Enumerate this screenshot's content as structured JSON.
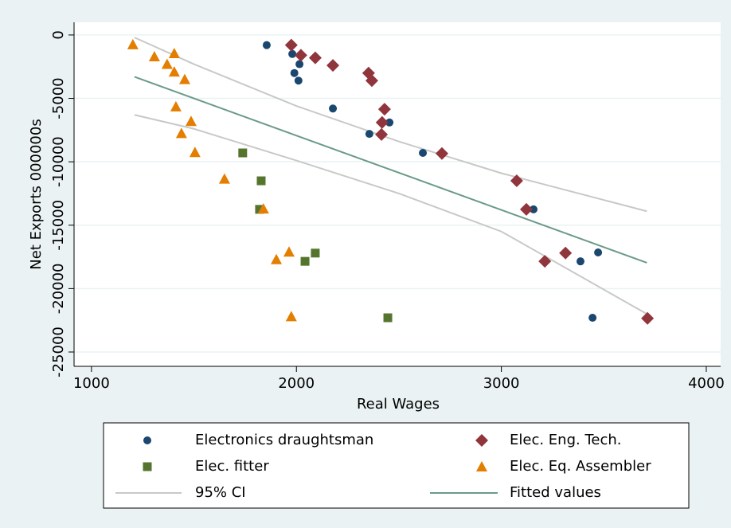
{
  "chart_data": {
    "type": "scatter",
    "x_label": "Real Wages",
    "y_label": "Net Exports 000000s",
    "xlim": [
      915,
      4070
    ],
    "ylim": [
      -26130,
      1000
    ],
    "xticks": [
      1000,
      2000,
      3000,
      4000
    ],
    "yticks": [
      0,
      -5000,
      -10000,
      -15000,
      -20000,
      -25000
    ],
    "grid": true,
    "legend": "bottom",
    "series": [
      {
        "name": "Electronics draughtsman",
        "color": "#1a476f",
        "marker": "circle",
        "x": [
          1855,
          1980,
          2015,
          1990,
          2010,
          2178,
          2356,
          2454,
          2617,
          3157,
          3386,
          3445,
          3472
        ],
        "values": [
          -800,
          -1500,
          -2300,
          -3000,
          -3600,
          -5800,
          -7800,
          -6900,
          -9300,
          -13750,
          -17850,
          -22300,
          -17150
        ]
      },
      {
        "name": "Elec. Eng. Tech.",
        "color": "#90353b",
        "marker": "diamond",
        "x": [
          1975,
          2022,
          2092,
          2178,
          2352,
          2368,
          2430,
          2418,
          2415,
          2710,
          3075,
          3122,
          3313,
          3212,
          3713
        ],
        "values": [
          -800,
          -1600,
          -1800,
          -2400,
          -3000,
          -3600,
          -5850,
          -6900,
          -7850,
          -9350,
          -11500,
          -13750,
          -17200,
          -17850,
          -22350
        ]
      },
      {
        "name": "Elec. fitter",
        "color": "#55752f",
        "marker": "square",
        "x": [
          1738,
          1828,
          1820,
          2092,
          2042,
          2446
        ],
        "values": [
          -9300,
          -11500,
          -13750,
          -17200,
          -17850,
          -22300
        ]
      },
      {
        "name": "Elec. Eq. Assembler",
        "color": "#e37e00",
        "marker": "triangle",
        "x": [
          1202,
          1307,
          1404,
          1369,
          1404,
          1455,
          1412,
          1486,
          1439,
          1505,
          1649,
          1839,
          1902,
          1964,
          1975
        ],
        "values": [
          -750,
          -1700,
          -1450,
          -2300,
          -2900,
          -3500,
          -5650,
          -6800,
          -7750,
          -9250,
          -11350,
          -13700,
          -17700,
          -17100,
          -22200
        ]
      },
      {
        "name": "95% CI",
        "color": "#c8c8c8",
        "marker": "band",
        "x": [
          1210,
          1500,
          2000,
          2500,
          3000,
          3710
        ],
        "upper": [
          -200,
          -2300,
          -5600,
          -8400,
          -10900,
          -13900
        ],
        "lower": [
          -6300,
          -7400,
          -9900,
          -12500,
          -15500,
          -22000
        ]
      },
      {
        "name": "Fitted values",
        "color": "#6a9a8a",
        "marker": "line",
        "x": [
          1210,
          3710
        ],
        "values": [
          -3300,
          -17960
        ]
      }
    ]
  }
}
